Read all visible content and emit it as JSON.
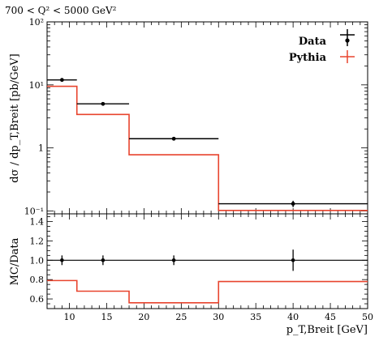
{
  "chart_data": [
    {
      "type": "line",
      "panel": "main",
      "title": "700 < Q² < 5000 GeV²",
      "ylabel": "dσ / dp_T,Breit [pb/GeV]",
      "yscale": "log",
      "xlim": [
        7,
        50
      ],
      "ylim": [
        0.09,
        100
      ],
      "y_tick_labels": [
        "10⁻¹",
        "1",
        "10¹",
        "10²"
      ],
      "legend_placement": "top-right",
      "bin_edges": [
        7,
        11,
        18,
        30,
        50
      ],
      "series": [
        {
          "name": "Data",
          "style": "points-with-errors",
          "color": "#000000",
          "x": [
            9,
            14.5,
            24,
            40
          ],
          "values": [
            12.0,
            5.0,
            1.4,
            0.13
          ],
          "xerr_low": [
            7,
            11,
            18,
            30
          ],
          "xerr_high": [
            11,
            18,
            30,
            50
          ],
          "yerr": [
            0.6,
            0.25,
            0.07,
            0.015
          ]
        },
        {
          "name": "Pythia",
          "style": "histogram-step",
          "color": "#e8442e",
          "values": [
            9.5,
            3.4,
            0.78,
            0.102
          ]
        }
      ]
    },
    {
      "type": "line",
      "panel": "ratio",
      "xlabel": "p_T,Breit [GeV]",
      "ylabel": "MC/Data",
      "xlim": [
        7,
        50
      ],
      "ylim": [
        0.5,
        1.48
      ],
      "x_ticks": [
        10,
        15,
        20,
        25,
        30,
        35,
        40,
        45,
        50
      ],
      "y_ticks": [
        0.6,
        0.8,
        1.0,
        1.2,
        1.4
      ],
      "bin_edges": [
        7,
        11,
        18,
        30,
        50
      ],
      "series": [
        {
          "name": "Data",
          "style": "points-with-errors",
          "color": "#000000",
          "x": [
            9,
            14.5,
            24,
            40
          ],
          "values": [
            1.0,
            1.0,
            1.0,
            1.0
          ],
          "yerr": [
            0.05,
            0.05,
            0.05,
            0.11
          ]
        },
        {
          "name": "Pythia",
          "style": "histogram-step",
          "color": "#e8442e",
          "values": [
            0.79,
            0.68,
            0.56,
            0.78
          ]
        }
      ]
    }
  ]
}
